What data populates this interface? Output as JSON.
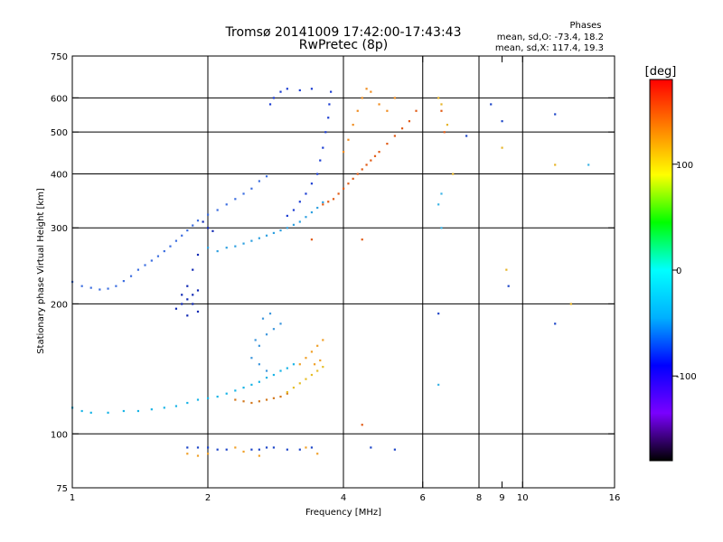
{
  "chart_data": {
    "type": "scatter",
    "title": "Tromsø 20141009 17:42:00-17:43:43",
    "subtitle": "RwPretec (8p)",
    "phases": {
      "label": "Phases",
      "o_stats": "mean, sd,O: -73.4, 18.2",
      "x_stats": "mean, sd,X: 117.4, 19.3"
    },
    "xlabel": "Frequency [MHz]",
    "ylabel": "Stationary phase Virtual Height [km]",
    "xscale": "log",
    "yscale": "log",
    "xlim": [
      1,
      16
    ],
    "ylim": [
      75,
      750
    ],
    "x_ticks": [
      1,
      2,
      4,
      6,
      8,
      9,
      10,
      16
    ],
    "x_tick_labels": [
      "1",
      "2",
      "4",
      "6",
      "8",
      "9",
      "10",
      "16"
    ],
    "y_ticks": [
      75,
      100,
      200,
      300,
      400,
      500,
      600,
      750
    ],
    "y_tick_labels": [
      "75",
      "100",
      "200",
      "300",
      "400",
      "500",
      "600",
      "750"
    ],
    "x_gridlines": [
      2,
      4,
      6,
      8,
      10
    ],
    "y_gridlines": [
      100,
      200,
      300,
      400,
      500,
      600
    ],
    "grid": true,
    "colorbar": {
      "label": "[deg]",
      "range": [
        -180,
        180
      ],
      "ticks": [
        100,
        0,
        -100
      ],
      "tick_labels": [
        "100",
        "0",
        "-100"
      ],
      "stops": [
        "#000000",
        "#7a00ff",
        "#0000ff",
        "#00b0ff",
        "#00ffff",
        "#00ff00",
        "#ffff00",
        "#ff8000",
        "#ff0000"
      ]
    },
    "series": [
      {
        "color": "#3c6ee0",
        "points": [
          [
            1.0,
            225
          ],
          [
            1.05,
            220
          ],
          [
            1.1,
            218
          ],
          [
            1.15,
            216
          ],
          [
            1.2,
            217
          ],
          [
            1.25,
            220
          ],
          [
            1.3,
            226
          ],
          [
            1.35,
            232
          ],
          [
            1.4,
            240
          ],
          [
            1.45,
            246
          ],
          [
            1.5,
            252
          ],
          [
            1.55,
            258
          ],
          [
            1.6,
            265
          ],
          [
            1.65,
            272
          ],
          [
            1.7,
            280
          ],
          [
            1.75,
            288
          ],
          [
            1.8,
            296
          ],
          [
            1.85,
            304
          ],
          [
            1.9,
            312
          ],
          [
            2.0,
            322
          ],
          [
            2.1,
            330
          ],
          [
            2.2,
            340
          ],
          [
            2.3,
            350
          ],
          [
            2.4,
            360
          ],
          [
            2.5,
            370
          ],
          [
            2.6,
            385
          ],
          [
            2.7,
            395
          ]
        ]
      },
      {
        "color": "#19b4e6",
        "points": [
          [
            1.0,
            115
          ],
          [
            1.05,
            113
          ],
          [
            1.1,
            112
          ],
          [
            1.2,
            112
          ],
          [
            1.3,
            113
          ],
          [
            1.4,
            113
          ],
          [
            1.5,
            114
          ],
          [
            1.6,
            115
          ],
          [
            1.7,
            116
          ],
          [
            1.8,
            118
          ],
          [
            1.9,
            120
          ],
          [
            2.0,
            121
          ],
          [
            2.1,
            122
          ],
          [
            2.2,
            124
          ],
          [
            2.3,
            126
          ],
          [
            2.4,
            128
          ],
          [
            2.5,
            130
          ],
          [
            2.6,
            132
          ],
          [
            2.7,
            135
          ],
          [
            2.8,
            137
          ],
          [
            2.9,
            140
          ],
          [
            3.0,
            142
          ],
          [
            3.1,
            145
          ]
        ]
      },
      {
        "color": "#2ea0e0",
        "points": [
          [
            2.0,
            270
          ],
          [
            2.1,
            265
          ],
          [
            2.2,
            270
          ],
          [
            2.3,
            272
          ],
          [
            2.4,
            276
          ],
          [
            2.5,
            280
          ],
          [
            2.6,
            284
          ],
          [
            2.7,
            288
          ],
          [
            2.8,
            292
          ],
          [
            2.9,
            296
          ],
          [
            3.0,
            300
          ],
          [
            3.1,
            305
          ],
          [
            3.2,
            310
          ],
          [
            3.3,
            318
          ],
          [
            3.4,
            326
          ],
          [
            3.5,
            334
          ],
          [
            3.6,
            344
          ]
        ]
      },
      {
        "color": "#1a3cd2",
        "points": [
          [
            3.0,
            320
          ],
          [
            3.1,
            330
          ],
          [
            3.2,
            345
          ],
          [
            3.3,
            360
          ],
          [
            3.4,
            380
          ],
          [
            3.5,
            400
          ],
          [
            3.55,
            430
          ],
          [
            3.6,
            460
          ],
          [
            3.65,
            500
          ],
          [
            3.7,
            540
          ],
          [
            3.72,
            580
          ],
          [
            3.75,
            620
          ],
          [
            3.4,
            630
          ],
          [
            3.2,
            625
          ],
          [
            3.0,
            630
          ],
          [
            2.9,
            620
          ],
          [
            2.8,
            600
          ],
          [
            2.75,
            580
          ]
        ]
      },
      {
        "color": "#0f28b4",
        "points": [
          [
            1.7,
            195
          ],
          [
            1.75,
            200
          ],
          [
            1.8,
            205
          ],
          [
            1.85,
            210
          ],
          [
            1.9,
            215
          ],
          [
            1.8,
            220
          ],
          [
            1.75,
            210
          ],
          [
            1.85,
            200
          ],
          [
            1.9,
            192
          ],
          [
            1.8,
            188
          ],
          [
            1.85,
            240
          ],
          [
            1.9,
            260
          ],
          [
            2.0,
            300
          ],
          [
            1.95,
            310
          ],
          [
            2.05,
            295
          ]
        ]
      },
      {
        "color": "#e15a14",
        "points": [
          [
            3.6,
            340
          ],
          [
            3.7,
            345
          ],
          [
            3.8,
            350
          ],
          [
            3.9,
            360
          ],
          [
            4.0,
            370
          ],
          [
            4.1,
            380
          ],
          [
            4.2,
            390
          ],
          [
            4.3,
            400
          ],
          [
            4.4,
            410
          ],
          [
            4.5,
            420
          ],
          [
            4.6,
            430
          ],
          [
            4.7,
            440
          ],
          [
            4.8,
            450
          ],
          [
            5.0,
            470
          ],
          [
            5.2,
            490
          ],
          [
            5.4,
            510
          ],
          [
            5.6,
            530
          ],
          [
            5.8,
            560
          ]
        ]
      },
      {
        "color": "#f08c1e",
        "points": [
          [
            4.0,
            450
          ],
          [
            4.1,
            480
          ],
          [
            4.2,
            520
          ],
          [
            4.3,
            560
          ],
          [
            4.4,
            600
          ],
          [
            4.5,
            630
          ],
          [
            4.6,
            620
          ],
          [
            4.8,
            580
          ],
          [
            5.0,
            560
          ],
          [
            5.2,
            600
          ]
        ]
      },
      {
        "color": "#d2781e",
        "points": [
          [
            2.3,
            120
          ],
          [
            2.4,
            119
          ],
          [
            2.5,
            118
          ],
          [
            2.6,
            119
          ],
          [
            2.7,
            120
          ],
          [
            2.8,
            121
          ],
          [
            2.9,
            122
          ],
          [
            3.0,
            124
          ]
        ]
      },
      {
        "color": "#e6be28",
        "points": [
          [
            3.0,
            125
          ],
          [
            3.1,
            128
          ],
          [
            3.2,
            131
          ],
          [
            3.3,
            134
          ],
          [
            3.4,
            137
          ],
          [
            3.5,
            140
          ],
          [
            3.6,
            143
          ]
        ]
      },
      {
        "color": "#f0a028",
        "points": [
          [
            3.2,
            145
          ],
          [
            3.3,
            150
          ],
          [
            3.4,
            155
          ],
          [
            3.5,
            160
          ],
          [
            3.6,
            165
          ],
          [
            3.45,
            145
          ],
          [
            3.55,
            148
          ]
        ]
      },
      {
        "color": "#3c96dc",
        "points": [
          [
            2.5,
            150
          ],
          [
            2.6,
            160
          ],
          [
            2.7,
            170
          ],
          [
            2.8,
            175
          ],
          [
            2.9,
            180
          ],
          [
            2.75,
            190
          ],
          [
            2.65,
            185
          ],
          [
            2.55,
            165
          ],
          [
            2.6,
            145
          ],
          [
            2.7,
            140
          ]
        ]
      },
      {
        "color": "#1e46c8",
        "points": [
          [
            1.8,
            93
          ],
          [
            1.9,
            93
          ],
          [
            2.0,
            93
          ],
          [
            2.1,
            92
          ],
          [
            2.2,
            92
          ],
          [
            2.5,
            92
          ],
          [
            2.6,
            92
          ],
          [
            2.7,
            93
          ],
          [
            2.8,
            93
          ],
          [
            3.0,
            92
          ],
          [
            3.2,
            92
          ],
          [
            3.4,
            93
          ],
          [
            4.6,
            93
          ],
          [
            5.2,
            92
          ]
        ]
      },
      {
        "color": "#f0a028",
        "points": [
          [
            1.8,
            90
          ],
          [
            1.9,
            89
          ],
          [
            2.0,
            90
          ],
          [
            2.3,
            93
          ],
          [
            2.4,
            91
          ],
          [
            2.6,
            89
          ],
          [
            3.3,
            93
          ],
          [
            3.5,
            90
          ]
        ]
      },
      {
        "color": "#1e46c8",
        "points": [
          [
            6.5,
            190
          ],
          [
            7.5,
            490
          ],
          [
            8.5,
            580
          ],
          [
            9.0,
            530
          ],
          [
            9.3,
            220
          ],
          [
            11.8,
            550
          ],
          [
            11.8,
            180
          ]
        ]
      },
      {
        "color": "#e6b428",
        "points": [
          [
            6.5,
            600
          ],
          [
            6.6,
            580
          ],
          [
            6.8,
            520
          ],
          [
            7.0,
            400
          ],
          [
            9.0,
            460
          ],
          [
            9.2,
            240
          ],
          [
            11.8,
            420
          ],
          [
            12.8,
            200
          ]
        ]
      },
      {
        "color": "#3cb4e6",
        "points": [
          [
            6.6,
            360
          ],
          [
            6.5,
            340
          ],
          [
            6.6,
            300
          ],
          [
            14.0,
            420
          ],
          [
            6.5,
            130
          ]
        ]
      },
      {
        "color": "#e15a14",
        "points": [
          [
            6.6,
            560
          ],
          [
            6.7,
            500
          ],
          [
            3.4,
            282
          ],
          [
            4.4,
            105
          ],
          [
            4.4,
            282
          ]
        ]
      }
    ]
  }
}
